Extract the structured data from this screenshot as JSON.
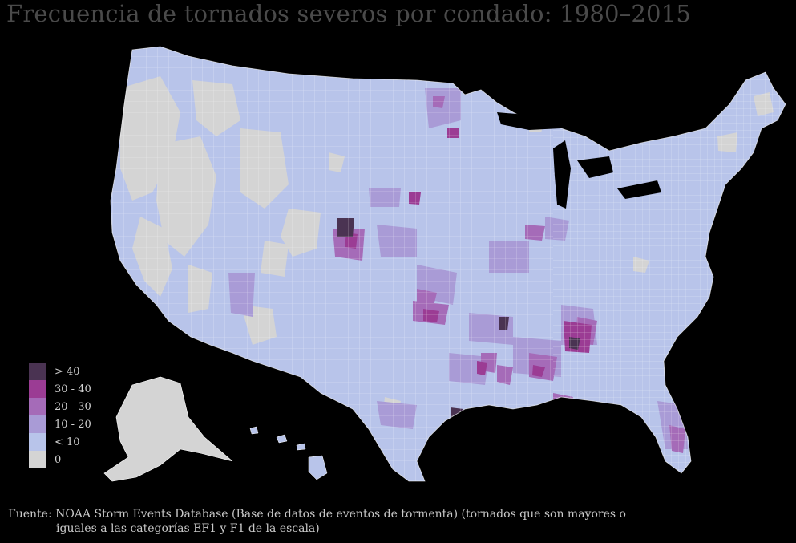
{
  "title": "Frecuencia de tornados severos por condado: 1980–2015",
  "legend": [
    {
      "label": "> 40",
      "color": "#4a3352"
    },
    {
      "label": "30 - 40",
      "color": "#9b3c94"
    },
    {
      "label": "20 - 30",
      "color": "#a56bb8"
    },
    {
      "label": "10 - 20",
      "color": "#a99bd6"
    },
    {
      "label": "< 10",
      "color": "#b8c4ea"
    },
    {
      "label": "0",
      "color": "#d4d4d4"
    }
  ],
  "source": {
    "line1": "Fuente: NOAA Storm Events Database (Base de datos de eventos de tormenta) (tornados que son mayores o",
    "line2": "iguales a las categorías EF1 y F1 de la escala)"
  },
  "colors": {
    "background": "#000000",
    "zero": "#d4d4d4",
    "low": "#b8c4ea",
    "mid": "#a99bd6",
    "high": "#a56bb8",
    "higher": "#9b3c94",
    "highest": "#4a3352"
  }
}
